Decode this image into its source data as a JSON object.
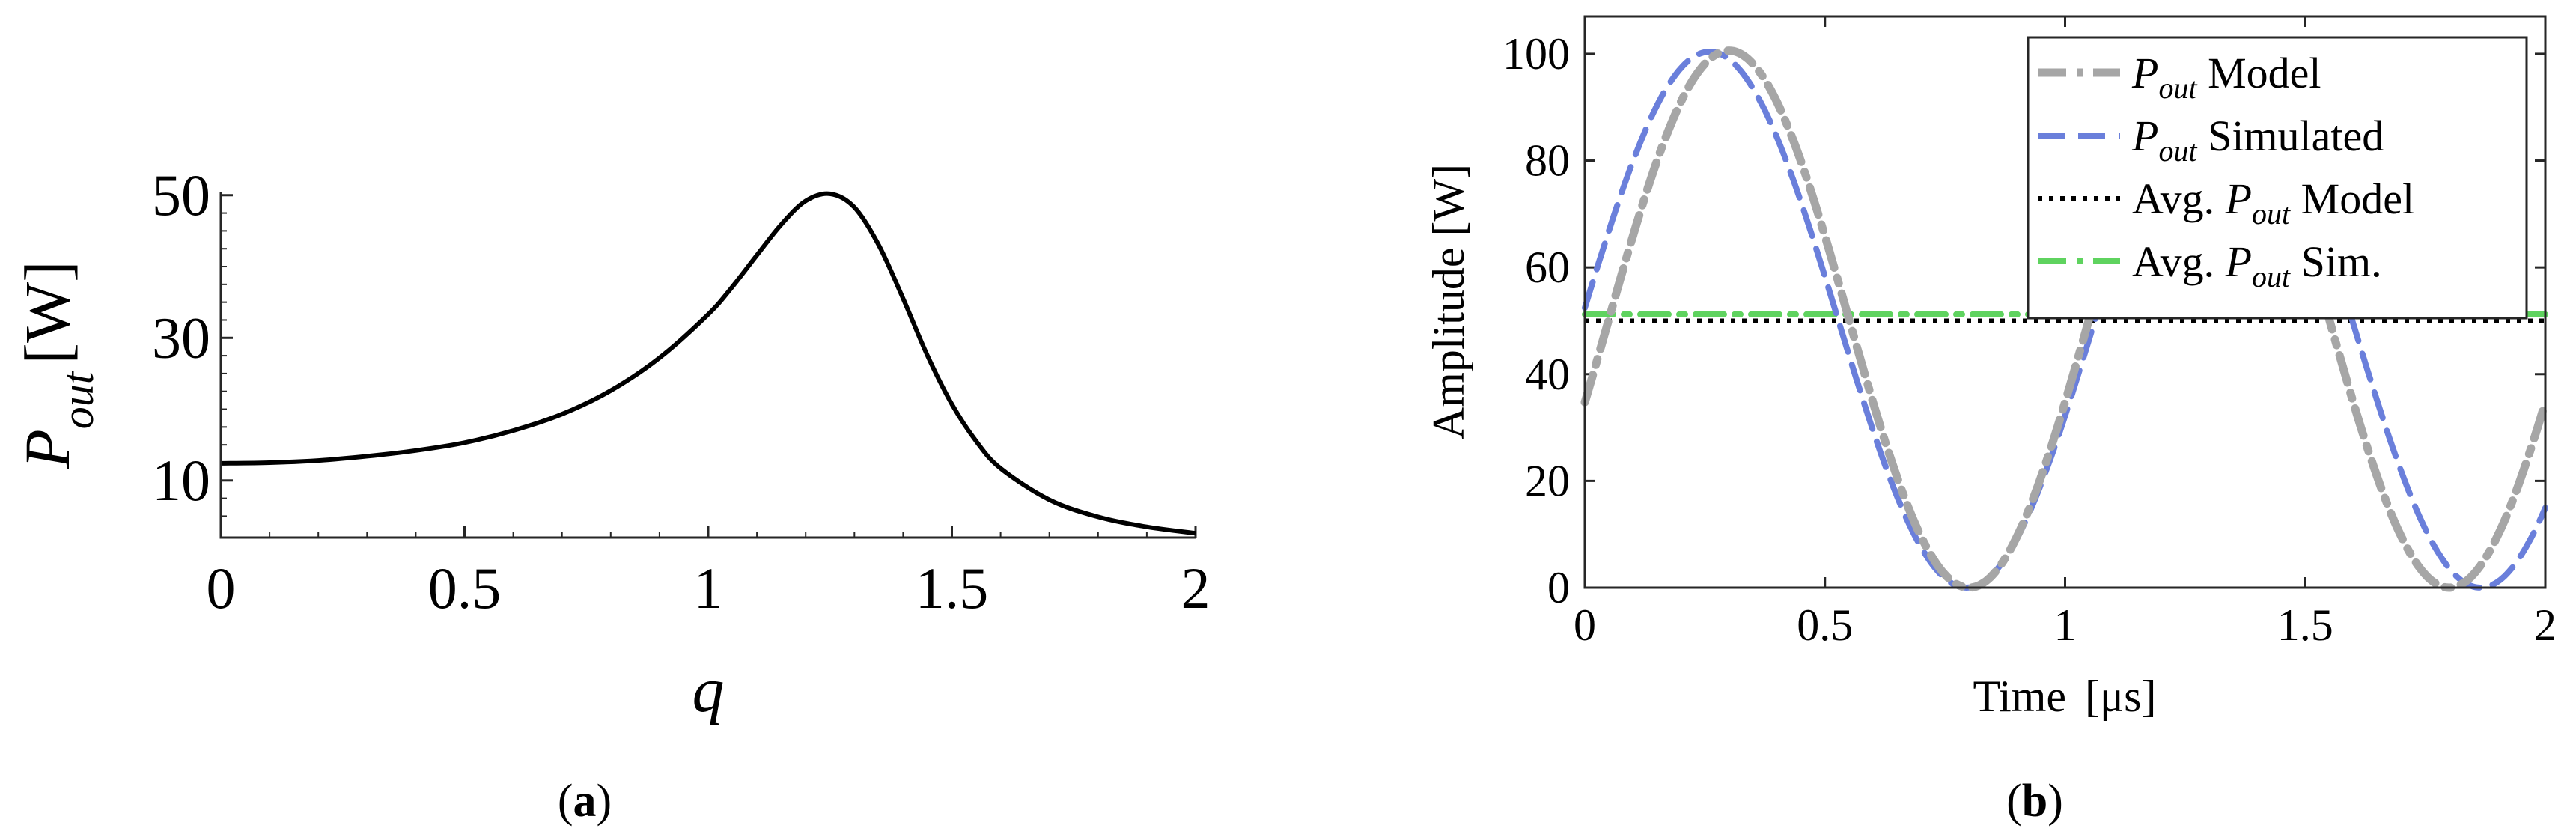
{
  "figure_captions": {
    "a": {
      "open": "(",
      "letter": "a",
      "close": ")"
    },
    "b": {
      "open": "(",
      "letter": "b",
      "close": ")"
    }
  },
  "chart_data": [
    {
      "id": "a",
      "type": "line",
      "xlabel": "q",
      "ylabel_main": "P",
      "ylabel_sub": "out",
      "ylabel_unit": "[W]",
      "xlim": [
        0,
        2
      ],
      "ylim": [
        2,
        50.5
      ],
      "xticks": [
        0,
        0.5,
        1,
        1.5,
        2
      ],
      "xtick_labels": [
        "0",
        "0.5",
        "1",
        "1.5",
        "2"
      ],
      "yticks": [
        10,
        30,
        50
      ],
      "ytick_labels": [
        "10",
        "30",
        "50"
      ],
      "series": [
        {
          "name": "P_out",
          "color": "#000000",
          "x": [
            0,
            0.1,
            0.2,
            0.3,
            0.4,
            0.5,
            0.6,
            0.7,
            0.8,
            0.9,
            1.0,
            1.05,
            1.1,
            1.15,
            1.2,
            1.25,
            1.3,
            1.35,
            1.4,
            1.45,
            1.5,
            1.55,
            1.6,
            1.7,
            1.8,
            1.9,
            2.0
          ],
          "values": [
            12.4,
            12.5,
            12.8,
            13.4,
            14.2,
            15.3,
            17.0,
            19.3,
            22.6,
            27.2,
            33.3,
            37.2,
            41.6,
            45.9,
            49.2,
            50.2,
            48.3,
            43.0,
            35.5,
            27.5,
            20.7,
            15.5,
            11.7,
            7.3,
            4.9,
            3.5,
            2.6
          ]
        }
      ]
    },
    {
      "id": "b",
      "type": "line",
      "xlabel_text": "Time",
      "xlabel_unit": "[μs]",
      "ylabel": "Amplitude [W]",
      "xlim": [
        0,
        2
      ],
      "ylim": [
        0,
        107
      ],
      "xticks": [
        0,
        0.5,
        1,
        1.5,
        2
      ],
      "xtick_labels": [
        "0",
        "0.5",
        "1",
        "1.5",
        "2"
      ],
      "yticks": [
        0,
        20,
        40,
        60,
        80,
        100
      ],
      "ytick_labels": [
        "0",
        "20",
        "40",
        "60",
        "80",
        "100"
      ],
      "legend_position": "top-right",
      "series": [
        {
          "name": "Pout Model",
          "legend_main": "P",
          "legend_sub": "out",
          "legend_suffix": " Model",
          "legend_prefix": "",
          "color": "#a6a6a6",
          "style": "dash-dot",
          "kind": "cosine",
          "mean": 50.3,
          "amplitude": 50.3,
          "period": 1.0,
          "peak_time": 0.3
        },
        {
          "name": "Pout Simulated",
          "legend_main": "P",
          "legend_sub": "out",
          "legend_suffix": " Simulated",
          "legend_prefix": "",
          "color": "#6a7fdb",
          "style": "dashed",
          "kind": "cosine",
          "mean": 50.2,
          "amplitude": 50.2,
          "period": 1.07,
          "peak_time": 0.26
        },
        {
          "name": "Avg. Pout Model",
          "legend_main": "P",
          "legend_sub": "out",
          "legend_suffix": " Model",
          "legend_prefix": "Avg. ",
          "color": "#000000",
          "style": "dotted",
          "kind": "constant",
          "value": 50.0
        },
        {
          "name": "Avg. Pout Sim.",
          "legend_main": "P",
          "legend_sub": "out",
          "legend_suffix": " Sim.",
          "legend_prefix": "Avg. ",
          "color": "#5fd35f",
          "style": "dash-dot",
          "kind": "constant",
          "value": 51.2
        }
      ]
    }
  ]
}
